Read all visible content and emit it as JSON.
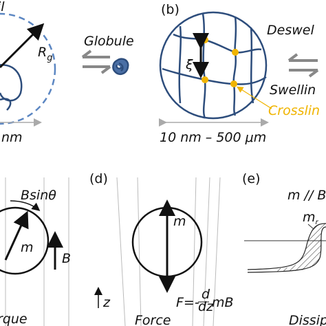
{
  "panel_a": {
    "title": "il",
    "radius_label": "R",
    "radius_sub": "g",
    "product": "Globule",
    "scale": "nm"
  },
  "panel_b": {
    "label": "(b)",
    "mesh_label": "ξ",
    "top": "Deswel",
    "bottom": "Swellin",
    "crosslink": "Crosslin",
    "scale": "10 nm – 500 μm"
  },
  "panel_c": {
    "torque": "Bsinθ",
    "moment": "m",
    "field": "B",
    "caption": "rque"
  },
  "panel_d": {
    "label": "(d)",
    "moment": "m",
    "force": "F=-",
    "frac_num": "d",
    "frac_den": "dz",
    "force_tail": "mB",
    "axis": "z",
    "caption": "Force"
  },
  "panel_e": {
    "label": "(e)",
    "condition": "m // B",
    "moment": "m",
    "moment_sub": "r",
    "caption": "Dissip"
  }
}
